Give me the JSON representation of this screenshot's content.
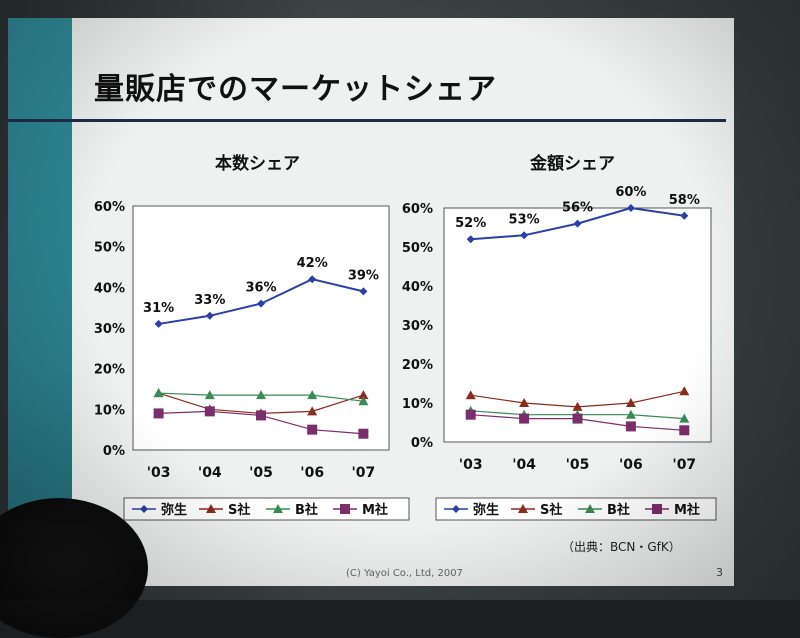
{
  "slide": {
    "title": "量販店でのマーケットシェア",
    "source": "（出典：BCN・GfK）",
    "copyright": "(C) Yayoi Co., Ltd, 2007",
    "page_number": "3"
  },
  "colors": {
    "yayoi": "#2b3fa8",
    "s": "#8b2a1e",
    "b": "#3a8a55",
    "m": "#7a2e6b",
    "teal": "#2a7f8c",
    "title_rule": "#1c2d4c"
  },
  "chart_data": [
    {
      "type": "line",
      "title": "本数シェア",
      "categories": [
        "'03",
        "'04",
        "'05",
        "'06",
        "'07"
      ],
      "ylim": [
        0,
        60
      ],
      "yticks": [
        "0%",
        "10%",
        "20%",
        "30%",
        "40%",
        "50%",
        "60%"
      ],
      "series": [
        {
          "name": "弥生",
          "values": [
            31,
            33,
            36,
            42,
            39
          ],
          "labels": [
            "31%",
            "33%",
            "36%",
            "42%",
            "39%"
          ]
        },
        {
          "name": "S社",
          "values": [
            14,
            10,
            9,
            9.5,
            13.5
          ]
        },
        {
          "name": "B社",
          "values": [
            14,
            13.5,
            13.5,
            13.5,
            12
          ]
        },
        {
          "name": "M社",
          "values": [
            9,
            9.5,
            8.5,
            5,
            4
          ]
        }
      ],
      "legend": "bottom"
    },
    {
      "type": "line",
      "title": "金額シェア",
      "categories": [
        "'03",
        "'04",
        "'05",
        "'06",
        "'07"
      ],
      "ylim": [
        0,
        60
      ],
      "yticks": [
        "0%",
        "10%",
        "20%",
        "30%",
        "40%",
        "50%",
        "60%"
      ],
      "series": [
        {
          "name": "弥生",
          "values": [
            52,
            53,
            56,
            60,
            58
          ],
          "labels": [
            "52%",
            "53%",
            "56%",
            "60%",
            "58%"
          ]
        },
        {
          "name": "S社",
          "values": [
            12,
            10,
            9,
            10,
            13
          ]
        },
        {
          "name": "B社",
          "values": [
            8,
            7,
            7,
            7,
            6
          ]
        },
        {
          "name": "M社",
          "values": [
            7,
            6,
            6,
            4,
            3
          ]
        }
      ],
      "legend": "bottom"
    }
  ]
}
